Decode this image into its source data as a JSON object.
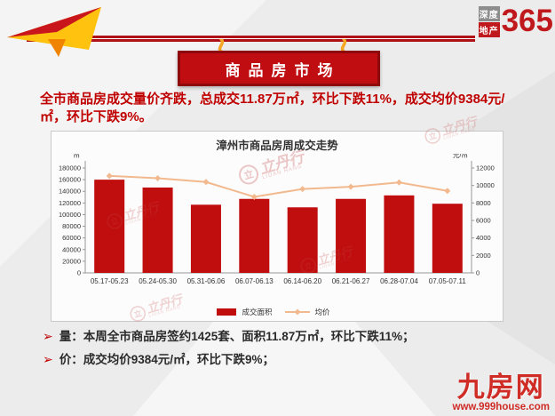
{
  "header": {
    "logo": {
      "line1": "深度",
      "line2": "地产",
      "number": "365"
    },
    "banner_title": "商品房市场"
  },
  "summary": {
    "text": "全市商品房成交量价齐跌，总成交11.87万㎡，环比下跌11%，成交均价9384元/㎡，环比下跌9%。"
  },
  "chart_data": {
    "type": "bar",
    "title": "漳州市商品房周成交走势",
    "categories": [
      "05.17-05.23",
      "05.24-05.30",
      "05.31-06.06",
      "06.07-06.13",
      "06.14-06.20",
      "06.21-06.27",
      "06.28-07.04",
      "07.05-07.11"
    ],
    "series": [
      {
        "name": "成交面积",
        "type": "bar",
        "axis": "left",
        "color": "#c00d0e",
        "values": [
          160000,
          146500,
          117000,
          127000,
          112500,
          127000,
          133000,
          118700
        ]
      },
      {
        "name": "均价",
        "type": "line",
        "axis": "right",
        "color": "#f2b98e",
        "values": [
          11100,
          10830,
          10400,
          8700,
          9600,
          9850,
          10350,
          9384
        ]
      }
    ],
    "left_axis": {
      "unit": "㎡",
      "min": 0,
      "max": 180000,
      "step": 20000
    },
    "right_axis": {
      "unit": "元/㎡",
      "min": 0,
      "max": 12000,
      "step": 2000
    },
    "grid": false,
    "legend_position": "bottom"
  },
  "bullets": [
    {
      "text": "量：本周全市商品房签约1425套、面积11.87万㎡，环比下跌11%；"
    },
    {
      "text": "价：成交均价9384元/㎡，环比下跌9%；"
    }
  ],
  "footer_logo": {
    "name": "九房网",
    "url": "www.999house.com"
  },
  "watermark": {
    "text": "立丹行",
    "char": "立",
    "subtext": "LIDAN HANG"
  },
  "colors": {
    "accent_red": "#c00d12",
    "line_orange": "#f2b98e",
    "rope_yellow": "#f5a623",
    "arrow_yellow": "#ffc20e"
  }
}
